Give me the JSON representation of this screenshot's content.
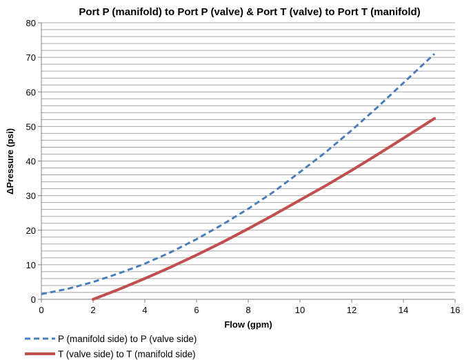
{
  "chart_data": {
    "type": "line",
    "title": "Port P (manifold) to Port P (valve) & Port T (valve) to Port T (manifold)",
    "xlabel": "Flow (gpm)",
    "ylabel": "ΔPressure (psi)",
    "xlim": [
      0,
      16
    ],
    "ylim": [
      0,
      80
    ],
    "xticks": [
      0,
      2,
      4,
      6,
      8,
      10,
      12,
      14,
      16
    ],
    "yticks": [
      0,
      10,
      20,
      30,
      40,
      50,
      60,
      70,
      80
    ],
    "minor_grid_step": 2,
    "grid": true,
    "legend_position": "bottom-left",
    "series": [
      {
        "name": "P (manifold side) to P (valve side)",
        "color": "#4a7ebb",
        "style": "dashed",
        "x": [
          0,
          1,
          2,
          3,
          4,
          5,
          6,
          7,
          8,
          9,
          10,
          11,
          12,
          13,
          14,
          15.2
        ],
        "y": [
          1.5,
          3.0,
          5.0,
          7.5,
          10.3,
          13.6,
          17.4,
          21.6,
          26.2,
          31.2,
          36.8,
          42.6,
          48.9,
          55.6,
          62.6,
          71.0
        ]
      },
      {
        "name": "T (valve side) to T (manifold side)",
        "color": "#c0504d",
        "style": "solid",
        "x": [
          2,
          3,
          4,
          5,
          6,
          7,
          8,
          9,
          10,
          11,
          12,
          13,
          14,
          15.2
        ],
        "y": [
          0,
          2.9,
          6.0,
          9.3,
          12.8,
          16.5,
          20.4,
          24.5,
          28.7,
          32.9,
          37.3,
          41.9,
          46.6,
          52.3
        ]
      }
    ]
  }
}
